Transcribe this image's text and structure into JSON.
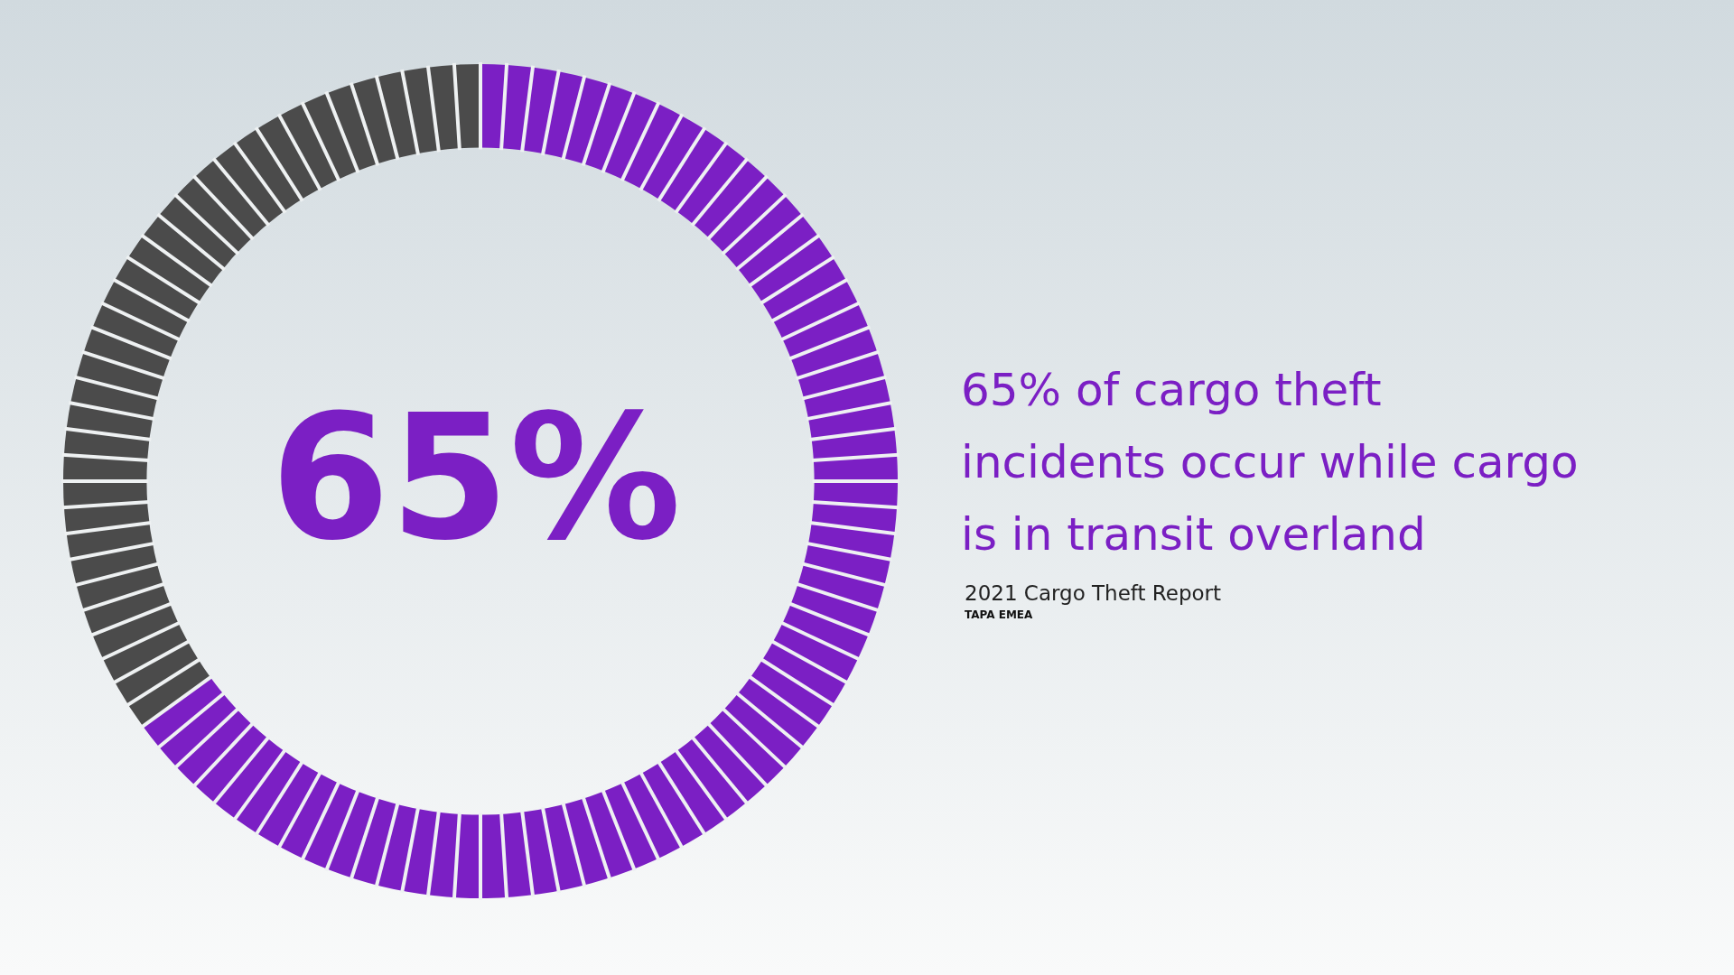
{
  "chart_data": {
    "type": "donut",
    "title": "65% of cargo theft incidents occur while cargo is in transit overland",
    "subtitle": "2021 Cargo Theft Report",
    "annotations": [
      "65%",
      "TAPA EMEA"
    ],
    "categories": [
      null,
      null
    ],
    "values": [
      65,
      35
    ],
    "colors": [
      "#7b1fc4",
      "#4b4b4b"
    ],
    "legend": false
  }
}
